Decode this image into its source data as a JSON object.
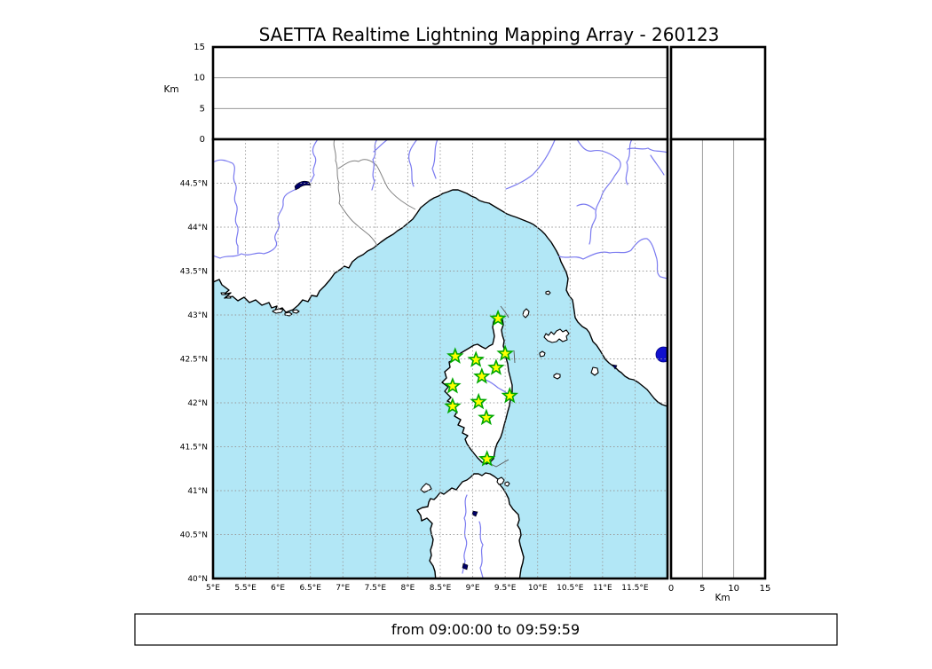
{
  "title": "SAETTA Realtime Lightning Mapping Array - 260123",
  "caption": "from 09:00:00 to 09:59:59",
  "altitude_axis": {
    "label": "Km",
    "min": 0,
    "max": 15,
    "ticks": [
      {
        "value": 0,
        "label": "0"
      },
      {
        "value": 5,
        "label": "5"
      },
      {
        "value": 10,
        "label": "10"
      },
      {
        "value": 15,
        "label": "15"
      }
    ]
  },
  "map": {
    "lon_min": 5.0,
    "lon_max": 12.0,
    "lat_min": 40.0,
    "lat_max": 45.0,
    "lon_ticks": [
      {
        "value": 5.0,
        "label": "5°E"
      },
      {
        "value": 5.5,
        "label": "5.5°E"
      },
      {
        "value": 6.0,
        "label": "6°E"
      },
      {
        "value": 6.5,
        "label": "6.5°E"
      },
      {
        "value": 7.0,
        "label": "7°E"
      },
      {
        "value": 7.5,
        "label": "7.5°E"
      },
      {
        "value": 8.0,
        "label": "8°E"
      },
      {
        "value": 8.5,
        "label": "8.5°E"
      },
      {
        "value": 9.0,
        "label": "9°E"
      },
      {
        "value": 9.5,
        "label": "9.5°E"
      },
      {
        "value": 10.0,
        "label": "10°E"
      },
      {
        "value": 10.5,
        "label": "10.5°E"
      },
      {
        "value": 11.0,
        "label": "11°E"
      },
      {
        "value": 11.5,
        "label": "11.5°E"
      }
    ],
    "lat_ticks": [
      {
        "value": 44.5,
        "label": "44.5°N"
      },
      {
        "value": 44.0,
        "label": "44°N"
      },
      {
        "value": 43.5,
        "label": "43.5°N"
      },
      {
        "value": 43.0,
        "label": "43°N"
      },
      {
        "value": 42.5,
        "label": "42.5°N"
      },
      {
        "value": 42.0,
        "label": "42°N"
      },
      {
        "value": 41.5,
        "label": "41.5°N"
      },
      {
        "value": 41.0,
        "label": "41°N"
      },
      {
        "value": 40.5,
        "label": "40.5°N"
      },
      {
        "value": 40.0,
        "label": "40°N"
      }
    ]
  },
  "stations": [
    {
      "lon": 9.39,
      "lat": 42.96
    },
    {
      "lon": 8.73,
      "lat": 42.53
    },
    {
      "lon": 9.05,
      "lat": 42.49
    },
    {
      "lon": 9.5,
      "lat": 42.56
    },
    {
      "lon": 9.36,
      "lat": 42.4
    },
    {
      "lon": 9.14,
      "lat": 42.3
    },
    {
      "lon": 8.69,
      "lat": 42.19
    },
    {
      "lon": 9.57,
      "lat": 42.08
    },
    {
      "lon": 9.09,
      "lat": 42.01
    },
    {
      "lon": 8.69,
      "lat": 41.96
    },
    {
      "lon": 9.21,
      "lat": 41.83
    },
    {
      "lon": 9.22,
      "lat": 41.36
    }
  ],
  "colors": {
    "sea": "#b2e7f6",
    "land": "#ffffff",
    "coast": "#000000",
    "river": "#7b7bf0",
    "lake": "#000066",
    "lake_bolsena": "#1111cf",
    "grid": "#999999",
    "region_border": "#808080",
    "star_fill": "#ffff00",
    "star_stroke": "#00a800"
  }
}
